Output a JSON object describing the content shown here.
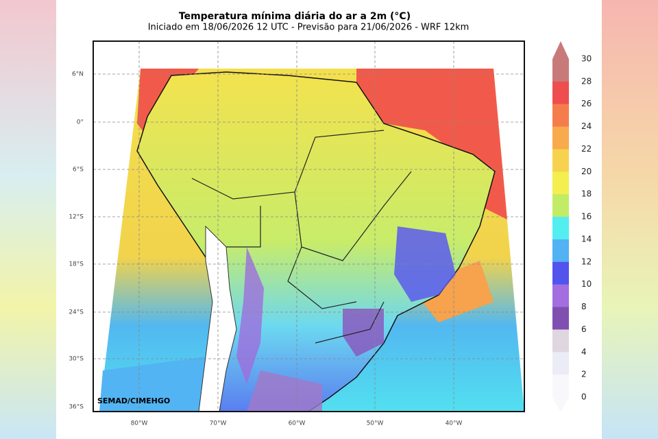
{
  "header": {
    "title": "Temperatura mínima diária do ar a 2m (°C)",
    "subtitle": "Iniciado em 18/06/2026 12 UTC - Previsão para 21/06/2026 - WRF 12km"
  },
  "map": {
    "lat_labels": [
      "6°N",
      "0°",
      "6°S",
      "12°S",
      "18°S",
      "24°S",
      "30°S",
      "36°S"
    ],
    "lon_labels": [
      "80°W",
      "70°W",
      "60°W",
      "50°W",
      "40°W"
    ],
    "credit": "SEMAD/CIMEHGO"
  },
  "colorbar": {
    "ticks": [
      30,
      28,
      26,
      24,
      22,
      20,
      18,
      16,
      14,
      12,
      10,
      8,
      6,
      4,
      2,
      0
    ],
    "colors": [
      "#c87a7a",
      "#ef4e4e",
      "#f57d4c",
      "#f9aa4c",
      "#f7d24e",
      "#f3ef4e",
      "#c2ec66",
      "#52eef0",
      "#52b2f3",
      "#5353ee",
      "#a26ee0",
      "#8050b0",
      "#e0d6e0",
      "#ececf6",
      "#f8f8fc"
    ]
  }
}
